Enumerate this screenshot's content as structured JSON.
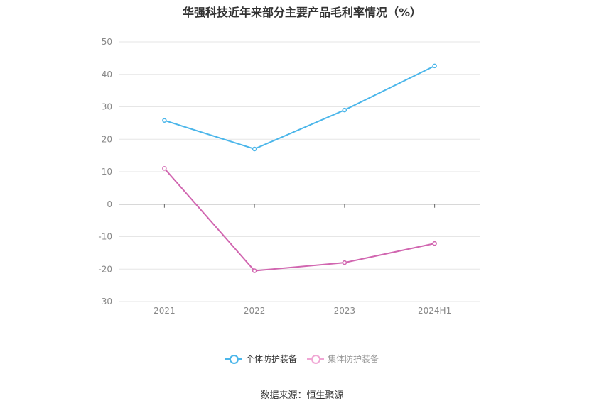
{
  "chart_data": {
    "type": "line",
    "title": "华强科技近年来部分主要产品毛利率情况（%）",
    "categories": [
      "2021",
      "2022",
      "2023",
      "2024H1"
    ],
    "series": [
      {
        "name": "个体防护装备",
        "color": "#4bb6ea",
        "values": [
          25.8,
          17.0,
          29.0,
          42.6
        ]
      },
      {
        "name": "集体防护装备",
        "color": "#d166b0",
        "values": [
          11.0,
          -20.5,
          -18.0,
          -12.1
        ]
      }
    ],
    "ylim": [
      -30,
      50
    ],
    "yticks": [
      "-30",
      "-20",
      "-10",
      "0",
      "10",
      "20",
      "30",
      "40",
      "50"
    ],
    "grid": true,
    "legend_position": "bottom"
  },
  "legend": {
    "items": [
      {
        "label": "个体防护装备",
        "color": "#4bb6ea",
        "active": true
      },
      {
        "label": "集体防护装备",
        "color": "#f0a6d4",
        "active": false
      }
    ]
  },
  "source": "数据来源：恒生聚源"
}
